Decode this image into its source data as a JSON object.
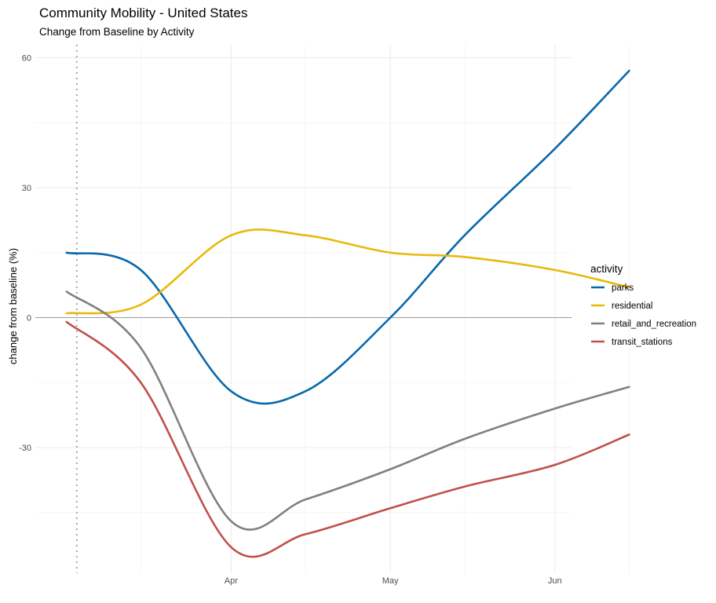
{
  "chart_data": {
    "type": "line",
    "title": "Community Mobility - United States",
    "subtitle": "Change from Baseline by Activity",
    "xlabel": "",
    "ylabel": "change from baseline (%)",
    "x_ticks": [
      "Apr",
      "May",
      "Jun"
    ],
    "y_ticks": [
      -30,
      0,
      30,
      60
    ],
    "ylim": [
      -59,
      63
    ],
    "x_dates": [
      "2020-03-01",
      "2020-03-15",
      "2020-04-01",
      "2020-04-15",
      "2020-05-01",
      "2020-05-15",
      "2020-06-01",
      "2020-06-15"
    ],
    "reference_line_date": "2020-03-01",
    "hline": 0,
    "grid": true,
    "legend": {
      "title": "activity",
      "position": "right"
    },
    "series": [
      {
        "name": "parks",
        "color": "#0868ac",
        "values": [
          15,
          11,
          -17,
          -17,
          0,
          19,
          39,
          57
        ]
      },
      {
        "name": "residential",
        "color": "#e8b90c",
        "values": [
          1,
          3,
          19,
          19,
          15,
          14,
          11,
          7
        ]
      },
      {
        "name": "retail_and_recreation",
        "color": "#808080",
        "values": [
          6,
          -7,
          -47,
          -42,
          -35,
          -28,
          -21,
          -16
        ]
      },
      {
        "name": "transit_stations",
        "color": "#c0504d",
        "values": [
          -1,
          -15,
          -53,
          -50,
          -44,
          -39,
          -34,
          -27
        ]
      }
    ]
  }
}
